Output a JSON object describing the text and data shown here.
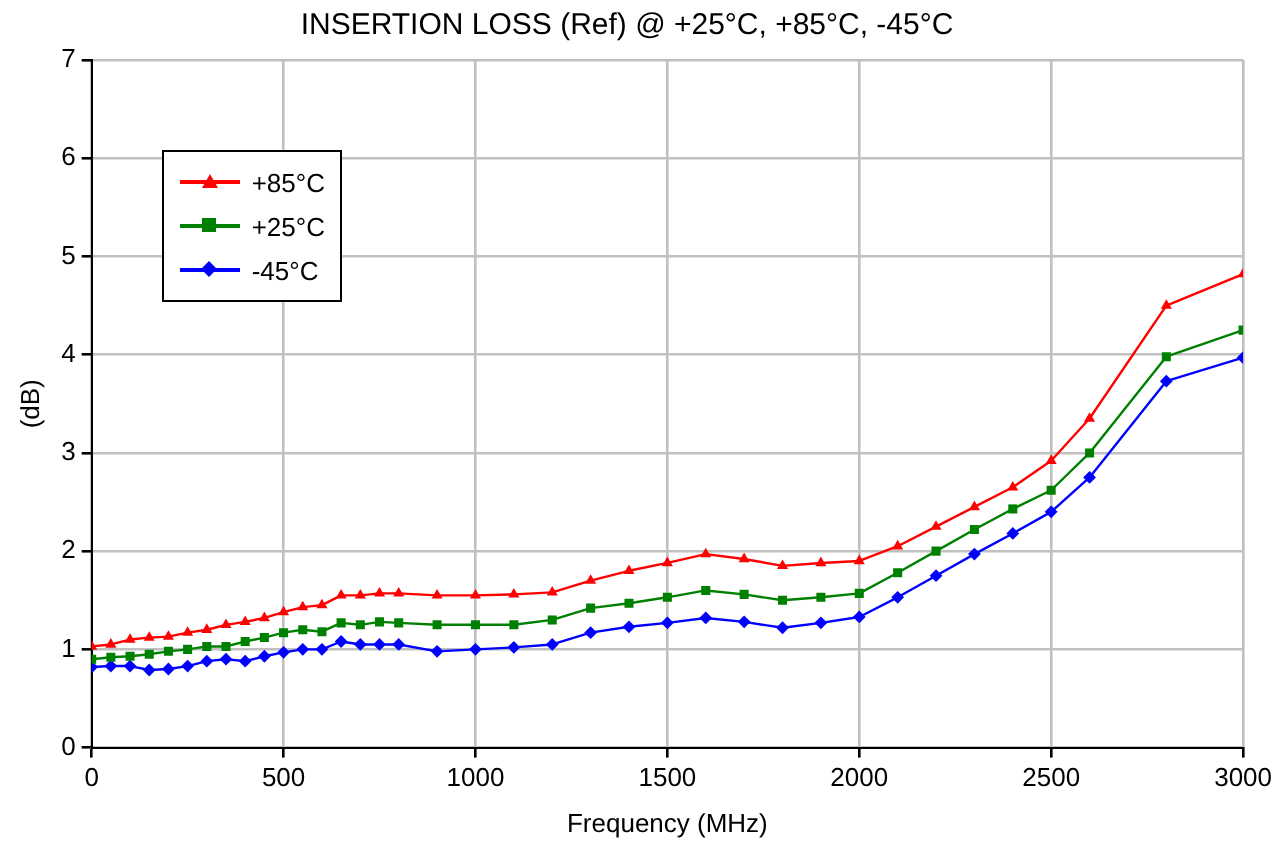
{
  "chart_data": {
    "type": "line",
    "title": "INSERTION LOSS (Ref) @ +25°C, +85°C, -45°C",
    "xlabel": "Frequency (MHz)",
    "ylabel": "(dB)",
    "x": [
      0,
      50,
      100,
      150,
      200,
      250,
      300,
      350,
      400,
      450,
      500,
      550,
      600,
      650,
      700,
      750,
      800,
      900,
      1000,
      1100,
      1200,
      1300,
      1400,
      1500,
      1600,
      1700,
      1800,
      1900,
      2000,
      2100,
      2200,
      2300,
      2400,
      2500,
      2600,
      2800,
      3000
    ],
    "series": [
      {
        "name": "+85°C",
        "color": "#ff0000",
        "marker": "triangle",
        "values": [
          1.03,
          1.05,
          1.1,
          1.12,
          1.13,
          1.17,
          1.2,
          1.25,
          1.28,
          1.32,
          1.38,
          1.43,
          1.45,
          1.55,
          1.55,
          1.57,
          1.57,
          1.55,
          1.55,
          1.56,
          1.58,
          1.7,
          1.8,
          1.88,
          1.97,
          1.92,
          1.85,
          1.88,
          1.9,
          2.05,
          2.25,
          2.45,
          2.65,
          2.92,
          3.35,
          4.5,
          4.82
        ]
      },
      {
        "name": "+25°C",
        "color": "#008000",
        "marker": "square",
        "values": [
          0.9,
          0.92,
          0.93,
          0.95,
          0.98,
          1.0,
          1.03,
          1.03,
          1.08,
          1.12,
          1.17,
          1.2,
          1.18,
          1.27,
          1.25,
          1.28,
          1.27,
          1.25,
          1.25,
          1.25,
          1.3,
          1.42,
          1.47,
          1.53,
          1.6,
          1.56,
          1.5,
          1.53,
          1.57,
          1.78,
          2.0,
          2.22,
          2.43,
          2.62,
          3.0,
          3.98,
          4.25
        ]
      },
      {
        "name": "-45°C",
        "color": "#0000ff",
        "marker": "diamond",
        "values": [
          0.82,
          0.83,
          0.83,
          0.79,
          0.8,
          0.83,
          0.88,
          0.9,
          0.88,
          0.93,
          0.97,
          1.0,
          1.0,
          1.08,
          1.05,
          1.05,
          1.05,
          0.98,
          1.0,
          1.02,
          1.05,
          1.17,
          1.23,
          1.27,
          1.32,
          1.28,
          1.22,
          1.27,
          1.33,
          1.53,
          1.75,
          1.97,
          2.18,
          2.4,
          2.75,
          3.73,
          3.97
        ]
      }
    ],
    "xlim": [
      0,
      3000
    ],
    "xticks": [
      0,
      500,
      1000,
      1500,
      2000,
      2500,
      3000
    ],
    "ylim": [
      0,
      7
    ],
    "yticks": [
      0,
      1,
      2,
      3,
      4,
      5,
      6,
      7
    ],
    "grid": true,
    "legend": "top left",
    "line_style": "solid"
  }
}
